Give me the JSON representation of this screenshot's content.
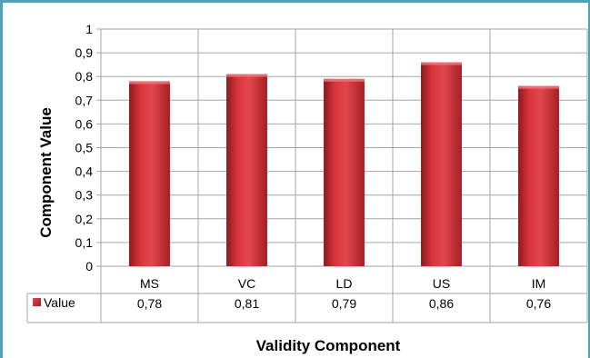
{
  "chart_data": {
    "type": "bar",
    "categories": [
      "MS",
      "VC",
      "LD",
      "US",
      "IM"
    ],
    "series": [
      {
        "name": "Value",
        "values": [
          0.78,
          0.81,
          0.79,
          0.86,
          0.76
        ],
        "color": "#c8282e"
      }
    ],
    "value_labels": [
      "0,78",
      "0,81",
      "0,79",
      "0,86",
      "0,76"
    ],
    "yticks": [
      "0",
      "0,1",
      "0,2",
      "0,3",
      "0,4",
      "0,5",
      "0,6",
      "0,7",
      "0,8",
      "0,9",
      "1"
    ],
    "ylim": [
      0,
      1
    ],
    "ylabel": "Component Value",
    "xlabel": "Validity Component",
    "grid": true,
    "legend": "data-table-left"
  }
}
